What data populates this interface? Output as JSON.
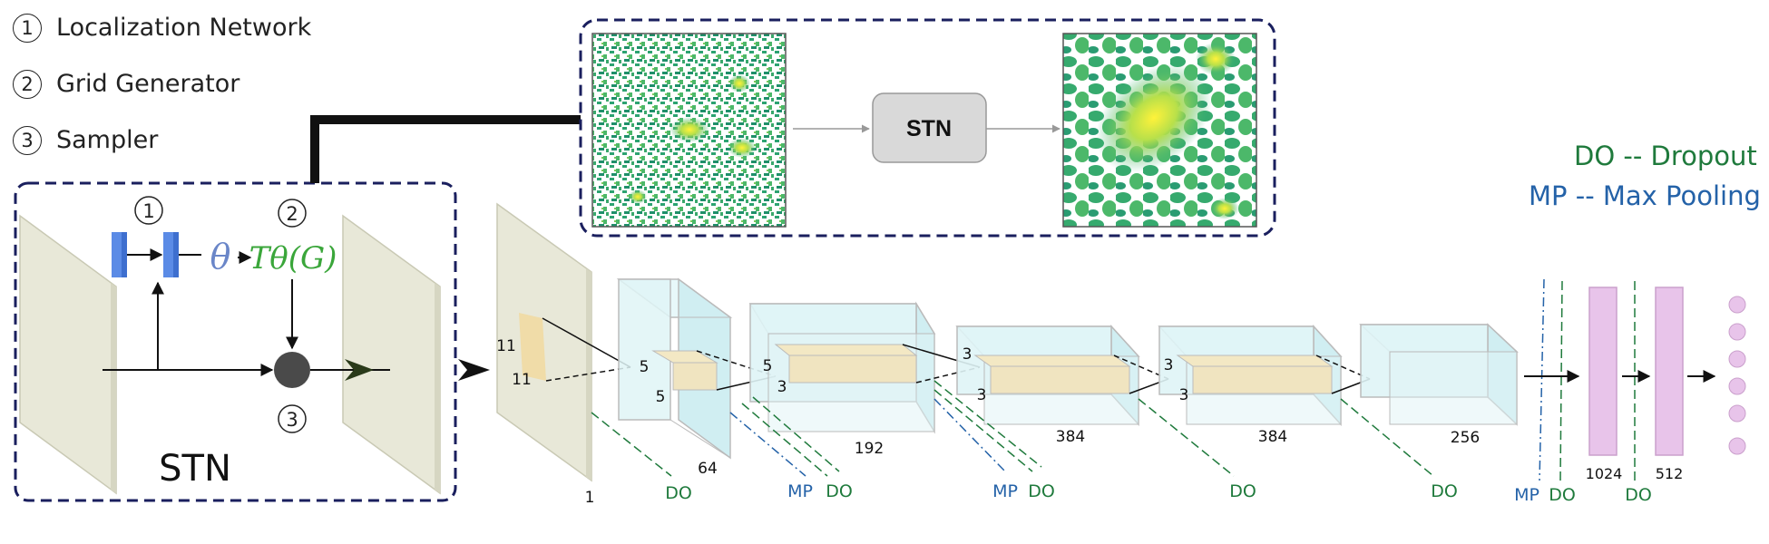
{
  "legend": [
    {
      "number": "1",
      "label": "Localization Network"
    },
    {
      "number": "2",
      "label": "Grid Generator"
    },
    {
      "number": "3",
      "label": "Sampler"
    }
  ],
  "abbreviations": {
    "dropout": "DO -- Dropout",
    "maxpool": "MP -- Max Pooling"
  },
  "colors": {
    "dropout": "#1f7a3c",
    "maxpool": "#2462a8",
    "box_border": "#1a1f5e",
    "input_plane": "#e8e8d8",
    "volume": "#dff4f6",
    "kernel": "#f0e4c0",
    "fc": "#e8c4ea"
  },
  "stn": {
    "title": "STN",
    "theta": "θ",
    "transform": "Tθ(G)",
    "step1": "1",
    "step2": "2",
    "step3": "3"
  },
  "inset": {
    "box_label": "STN"
  },
  "network": {
    "kernel1": {
      "h": "11",
      "w": "11"
    },
    "kernel2": {
      "h": "5",
      "w": "5"
    },
    "kernel3": {
      "h": "3",
      "w": "3"
    },
    "kernel4": {
      "h": "3",
      "w": "3"
    },
    "kernel5": {
      "h": "3",
      "w": "3"
    },
    "channels": [
      "1",
      "64",
      "192",
      "384",
      "384",
      "256",
      "1024",
      "512"
    ],
    "do_label": "DO",
    "mp_label": "MP"
  }
}
